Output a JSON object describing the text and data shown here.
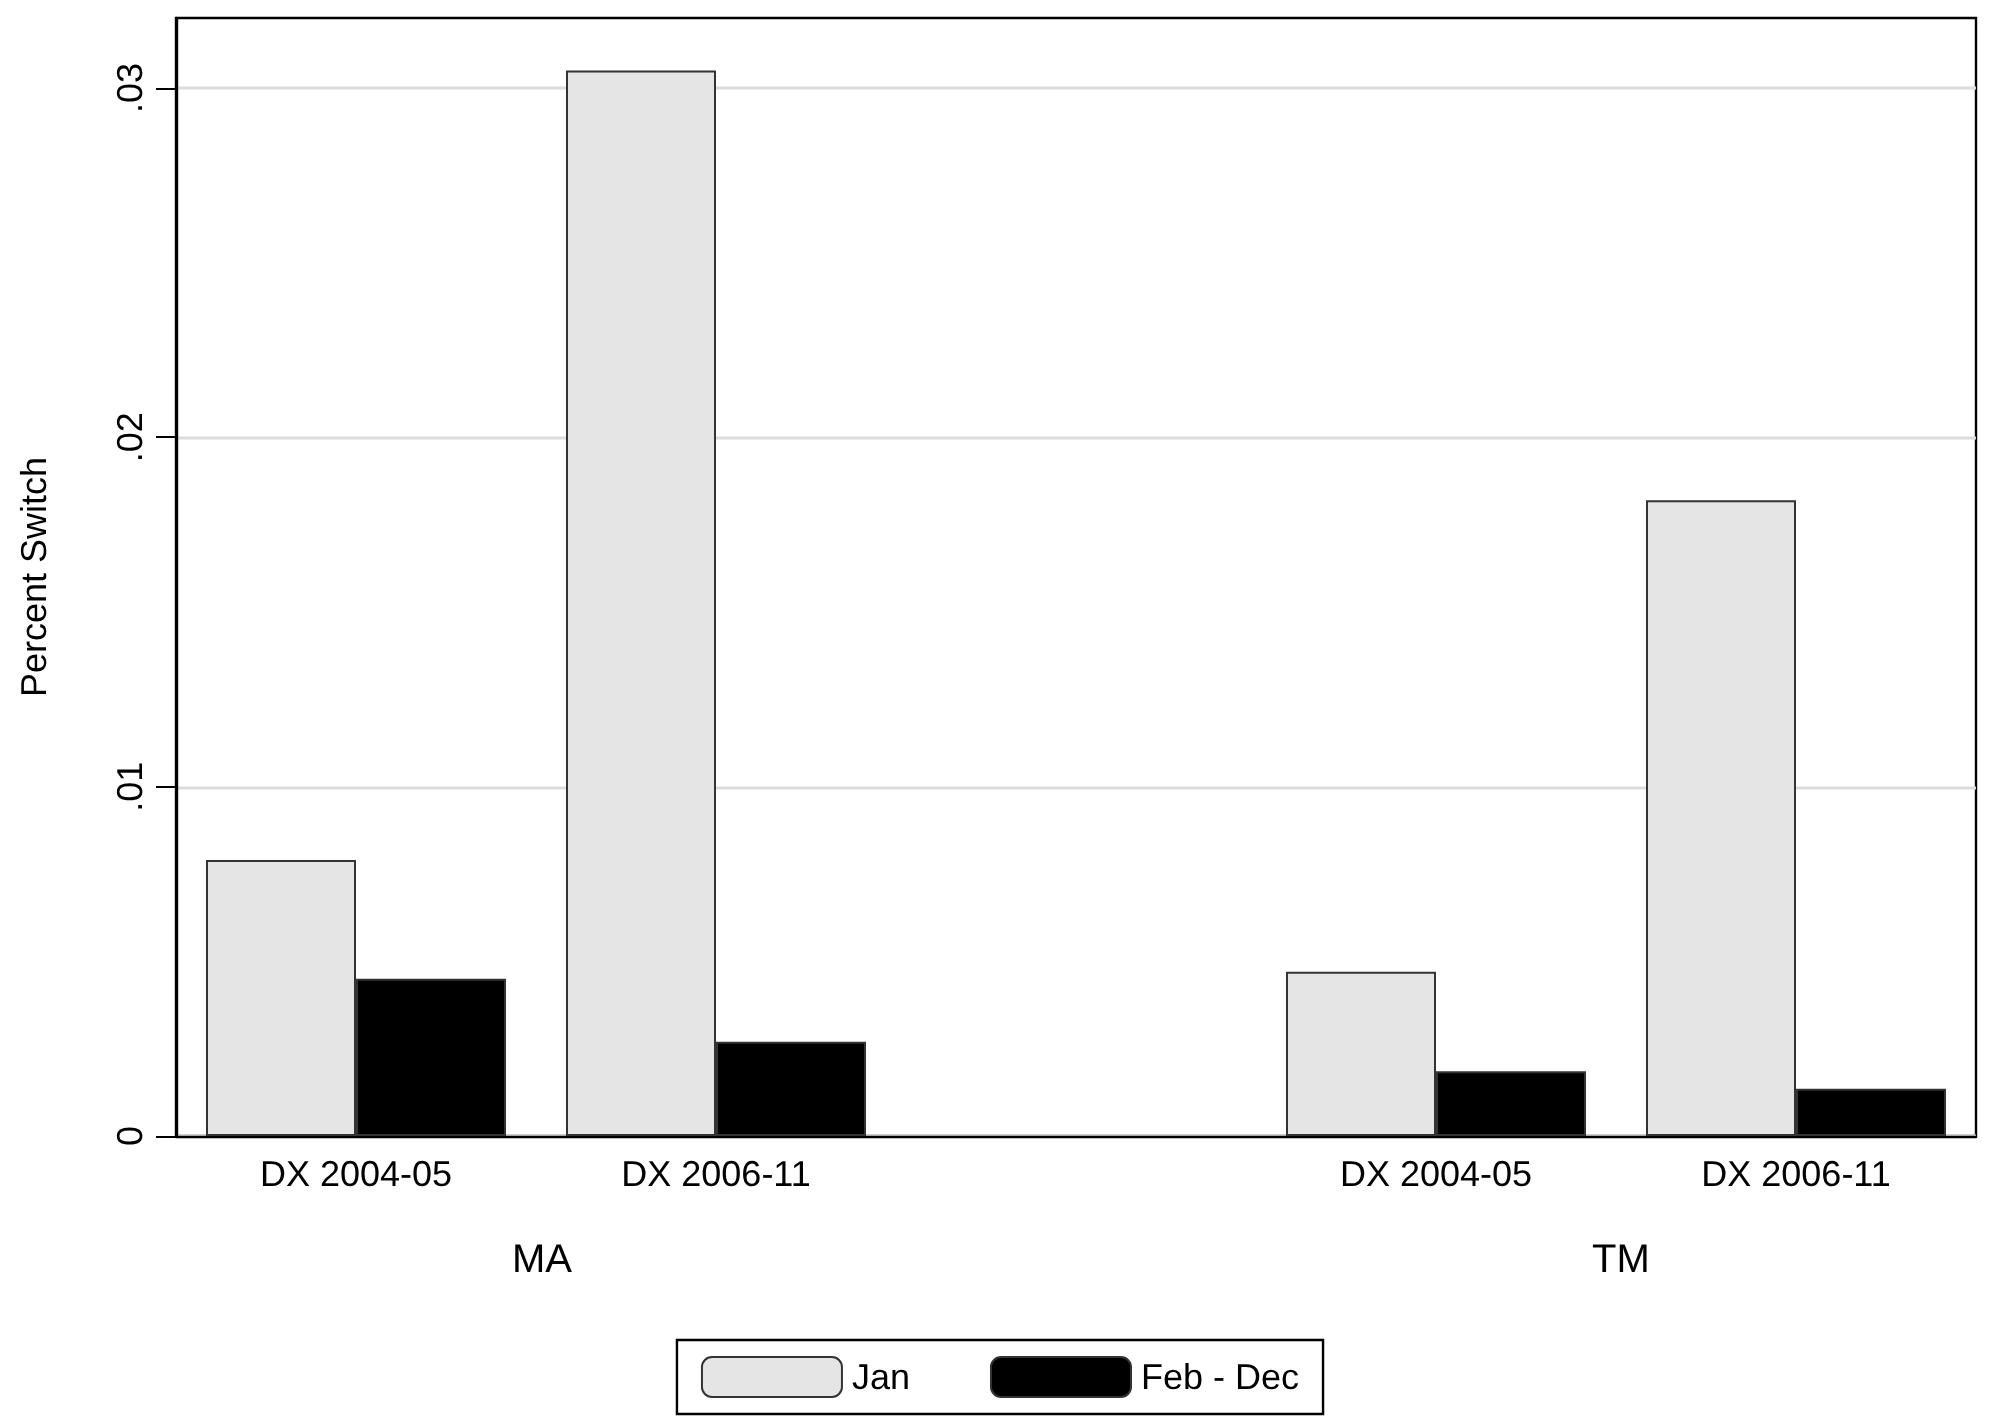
{
  "chart_data": {
    "type": "bar",
    "ylabel": "Percent Switch",
    "categories": [
      "DX 2004-05",
      "DX 2006-11",
      null,
      "DX 2004-05",
      "DX 2006-11"
    ],
    "series": [
      {
        "name": "Jan",
        "color": "#e5e5e5",
        "values": [
          0.0079,
          0.0305,
          null,
          0.0047,
          0.0182
        ]
      },
      {
        "name": "Feb - Dec",
        "color": "#000000",
        "values": [
          0.0045,
          0.0027,
          null,
          0.00185,
          0.00135
        ]
      }
    ],
    "annotations": [
      "MA",
      "TM"
    ],
    "ylim": [
      0,
      0.032
    ],
    "yticks": [
      {
        "value": 0,
        "label": "0"
      },
      {
        "value": 0.01,
        "label": ".01"
      },
      {
        "value": 0.02,
        "label": ".02"
      },
      {
        "value": 0.03,
        "label": ".03"
      }
    ],
    "grid": "y",
    "legend": "bottom"
  }
}
